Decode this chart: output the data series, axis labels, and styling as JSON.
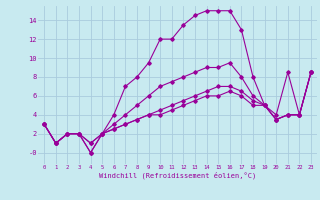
{
  "xlabel": "Windchill (Refroidissement éolien,°C)",
  "background_color": "#c8eaf0",
  "grid_color": "#aaccdd",
  "line_color": "#990099",
  "xlim": [
    -0.5,
    23.5
  ],
  "ylim": [
    -1.2,
    15.5
  ],
  "yticks": [
    0,
    2,
    4,
    6,
    8,
    10,
    12,
    14
  ],
  "ytick_labels": [
    "-0",
    "2",
    "4",
    "6",
    "8",
    "10",
    "12",
    "14"
  ],
  "xticks": [
    0,
    1,
    2,
    3,
    4,
    5,
    6,
    7,
    8,
    9,
    10,
    11,
    12,
    13,
    14,
    15,
    16,
    17,
    18,
    19,
    20,
    21,
    22,
    23
  ],
  "curves": [
    [
      3,
      1,
      2,
      2,
      0,
      2,
      4,
      7,
      8,
      9.5,
      12,
      12,
      13.5,
      14.5,
      15,
      15,
      15,
      13,
      8,
      5,
      4,
      8.5,
      4,
      8.5
    ],
    [
      3,
      1,
      2,
      2,
      0,
      2,
      3,
      4,
      5,
      6,
      7,
      7.5,
      8,
      8.5,
      9,
      9,
      9.5,
      8,
      6,
      5,
      3.5,
      4,
      4,
      8.5
    ],
    [
      3,
      1,
      2,
      2,
      1,
      2,
      2.5,
      3,
      3.5,
      4,
      4.5,
      5,
      5.5,
      6,
      6.5,
      7,
      7,
      6.5,
      5.5,
      5,
      3.5,
      4,
      4,
      8.5
    ],
    [
      3,
      1,
      2,
      2,
      1,
      2,
      2.5,
      3,
      3.5,
      4,
      4,
      4.5,
      5,
      5.5,
      6,
      6,
      6.5,
      6,
      5,
      5,
      3.5,
      4,
      4,
      8.5
    ]
  ]
}
